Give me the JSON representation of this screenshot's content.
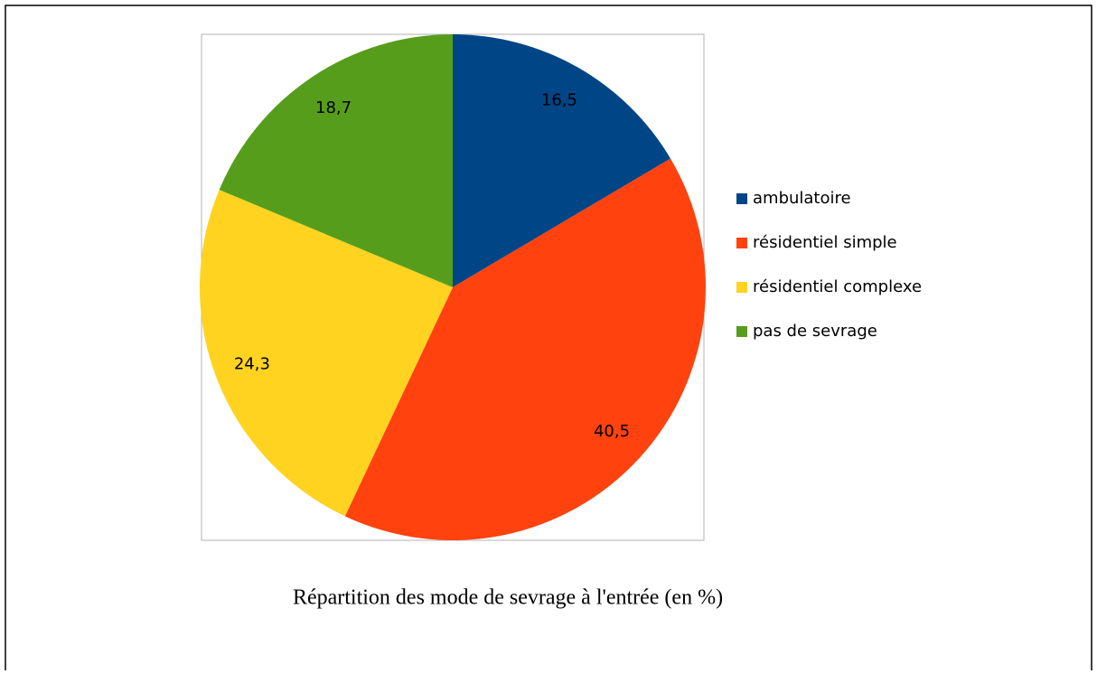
{
  "chart_data": {
    "type": "pie",
    "title": "Répartition des mode de sevrage à l'entrée (en %)",
    "categories": [
      "ambulatoire",
      "résidentiel simple",
      "résidentiel complexe",
      "pas de sevrage"
    ],
    "values": [
      16.5,
      40.5,
      24.3,
      18.7
    ],
    "value_labels": [
      "16,5",
      "40,5",
      "24,3",
      "18,7"
    ],
    "colors": [
      "#004586",
      "#ff420e",
      "#ffd320",
      "#579d1c"
    ],
    "legend": "right"
  }
}
